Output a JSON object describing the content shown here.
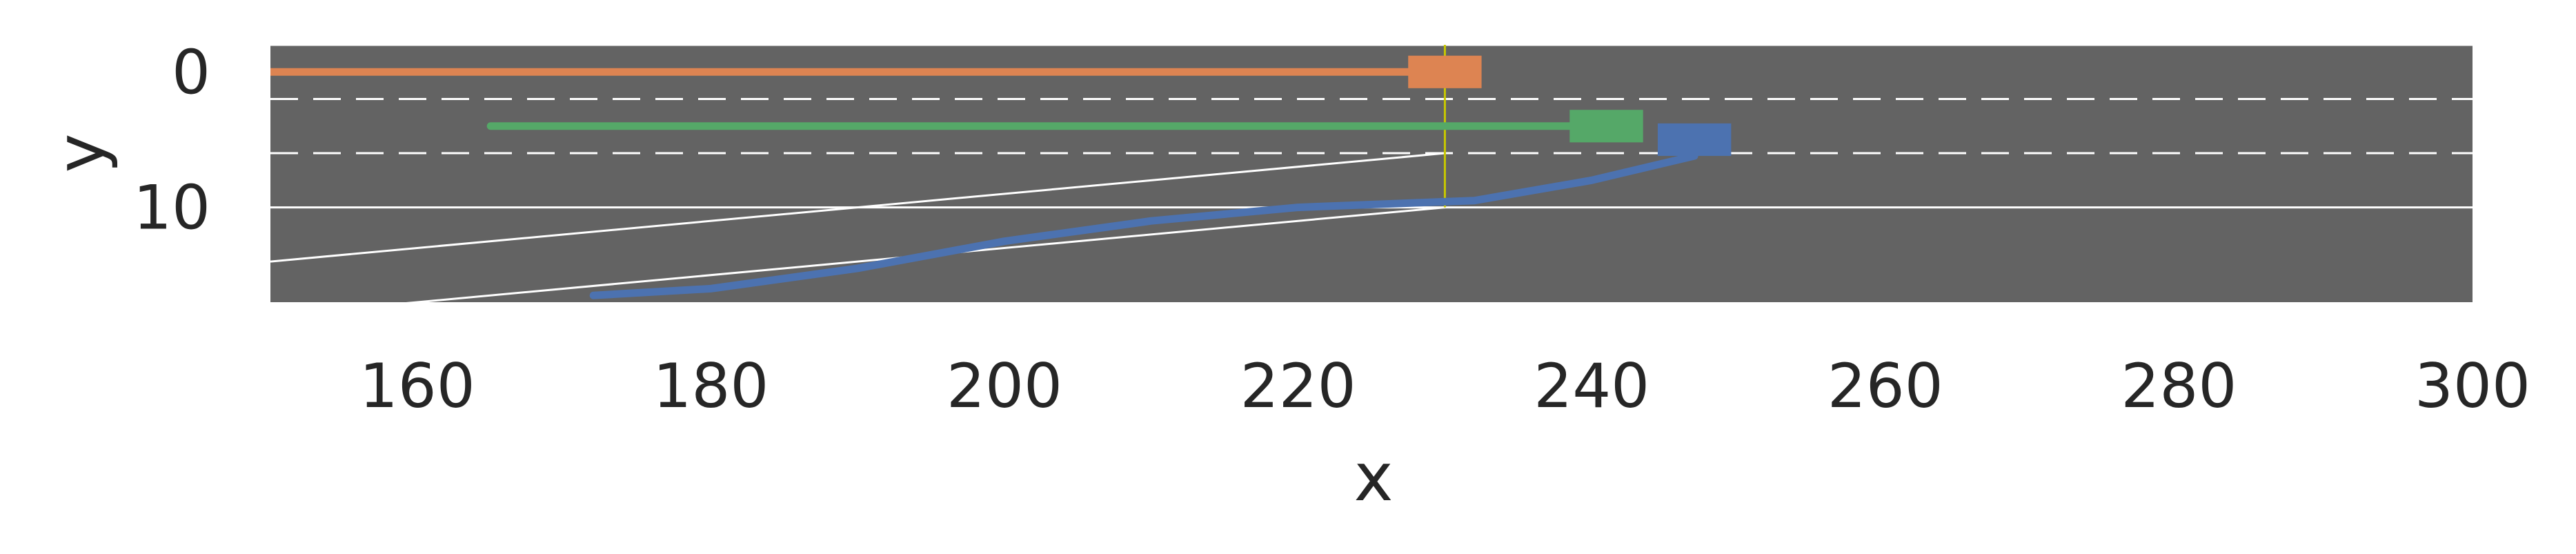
{
  "chart_data": {
    "type": "line",
    "title": "",
    "xlabel": "x",
    "ylabel": "y",
    "xlim": [
      150,
      300
    ],
    "ylim": [
      17,
      -2
    ],
    "y_inverted": true,
    "xticks": [
      160,
      180,
      200,
      220,
      240,
      260,
      280,
      300
    ],
    "yticks": [
      0,
      10
    ],
    "grid": false,
    "legend": "none",
    "colors": {
      "road": "#636363",
      "lane_line": "#ffffff",
      "marker_line": "#c8c800",
      "orange": "#dd8452",
      "green": "#55a868",
      "blue": "#4c72b0"
    },
    "road": {
      "main_lanes_boundaries": [
        {
          "y": -2,
          "style": "solid"
        },
        {
          "y": 2,
          "style": "dashed"
        },
        {
          "y": 6,
          "style": "dashed"
        },
        {
          "y": 10,
          "style": "solid"
        }
      ],
      "ramp_edges": [
        {
          "points": [
            [
              150,
              14
            ],
            [
              230,
              6
            ]
          ],
          "style": "solid"
        },
        {
          "points": [
            [
              150,
              18
            ],
            [
              230,
              10
            ]
          ],
          "style": "solid"
        }
      ],
      "x_end": 300
    },
    "markers": [
      {
        "x": 230,
        "y_range": [
          -2,
          10
        ]
      }
    ],
    "series": [
      {
        "color_key": "orange",
        "trajectory": [
          [
            150,
            0
          ],
          [
            230,
            0
          ]
        ],
        "vehicle": {
          "x": 230,
          "y": 0,
          "length": 5,
          "width": 2.4
        }
      },
      {
        "color_key": "green",
        "trajectory": [
          [
            165,
            4
          ],
          [
            241,
            4
          ]
        ],
        "vehicle": {
          "x": 241,
          "y": 4,
          "length": 5,
          "width": 2.4
        }
      },
      {
        "color_key": "blue",
        "trajectory": [
          [
            172,
            16.5
          ],
          [
            180,
            16
          ],
          [
            190,
            14.5
          ],
          [
            200,
            12.5
          ],
          [
            210,
            11
          ],
          [
            220,
            10
          ],
          [
            232,
            9.5
          ],
          [
            240,
            8
          ],
          [
            247,
            6.2
          ]
        ],
        "vehicle": {
          "x": 247,
          "y": 5,
          "length": 5,
          "width": 2.4
        }
      }
    ]
  }
}
